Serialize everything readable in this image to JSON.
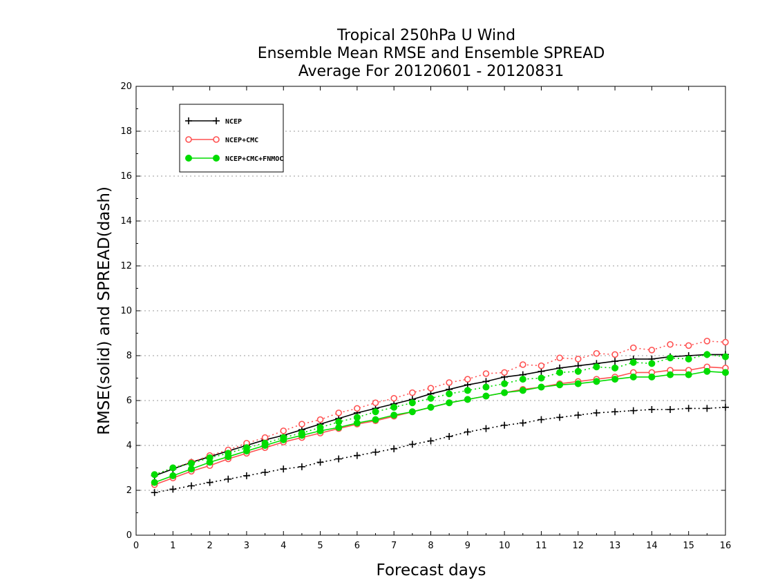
{
  "chart_data": {
    "type": "line",
    "title": [
      "Tropical 250hPa U Wind",
      "Ensemble Mean RMSE and Ensemble SPREAD",
      "Average For 20120601 - 20120831"
    ],
    "xlabel": "Forecast days",
    "ylabel": "RMSE(solid) and SPREAD(dash)",
    "xlim": [
      0,
      16
    ],
    "ylim": [
      0,
      20
    ],
    "xticks": [
      "0",
      "1",
      "2",
      "3",
      "4",
      "5",
      "6",
      "7",
      "8",
      "9",
      "10",
      "11",
      "12",
      "13",
      "14",
      "15",
      "16"
    ],
    "yticks": [
      "0",
      "2",
      "4",
      "6",
      "8",
      "10",
      "12",
      "14",
      "16",
      "18",
      "20"
    ],
    "grid": true,
    "legend_position": "top-left",
    "x": [
      0.5,
      1,
      1.5,
      2,
      2.5,
      3,
      3.5,
      4,
      4.5,
      5,
      5.5,
      6,
      6.5,
      7,
      7.5,
      8,
      8.5,
      9,
      9.5,
      10,
      10.5,
      11,
      11.5,
      12,
      12.5,
      13,
      13.5,
      14,
      14.5,
      15,
      15.5,
      16
    ],
    "series": [
      {
        "name": "NCEP",
        "kind": "rmse",
        "style": "solid",
        "marker": "plus",
        "color": "#000000",
        "values": [
          2.65,
          2.95,
          3.25,
          3.5,
          3.75,
          4.0,
          4.25,
          4.45,
          4.7,
          4.95,
          5.2,
          5.45,
          5.65,
          5.85,
          6.05,
          6.3,
          6.5,
          6.7,
          6.85,
          7.05,
          7.15,
          7.3,
          7.45,
          7.55,
          7.65,
          7.75,
          7.85,
          7.85,
          7.95,
          8.0,
          8.05,
          8.05
        ]
      },
      {
        "name": "NCEP+CMC",
        "kind": "rmse",
        "style": "solid",
        "marker": "open-circle",
        "color": "#ff5050",
        "values": [
          2.25,
          2.55,
          2.85,
          3.1,
          3.4,
          3.65,
          3.9,
          4.15,
          4.35,
          4.55,
          4.75,
          4.95,
          5.1,
          5.3,
          5.5,
          5.7,
          5.9,
          6.05,
          6.2,
          6.35,
          6.5,
          6.6,
          6.75,
          6.85,
          6.95,
          7.05,
          7.25,
          7.25,
          7.35,
          7.35,
          7.5,
          7.45
        ]
      },
      {
        "name": "NCEP+CMC+FNMOC",
        "kind": "rmse",
        "style": "solid",
        "marker": "filled-circle",
        "color": "#00dc00",
        "values": [
          2.35,
          2.65,
          2.95,
          3.25,
          3.5,
          3.75,
          4.0,
          4.25,
          4.45,
          4.65,
          4.8,
          5.0,
          5.15,
          5.35,
          5.5,
          5.7,
          5.9,
          6.05,
          6.2,
          6.35,
          6.45,
          6.6,
          6.7,
          6.75,
          6.85,
          6.95,
          7.05,
          7.05,
          7.15,
          7.15,
          7.3,
          7.25
        ]
      },
      {
        "name": "NCEP",
        "kind": "spread",
        "style": "dash",
        "marker": "plus",
        "color": "#000000",
        "values": [
          1.9,
          2.05,
          2.2,
          2.35,
          2.5,
          2.65,
          2.8,
          2.95,
          3.05,
          3.25,
          3.4,
          3.55,
          3.7,
          3.85,
          4.05,
          4.2,
          4.4,
          4.6,
          4.75,
          4.9,
          5.0,
          5.15,
          5.25,
          5.35,
          5.45,
          5.5,
          5.55,
          5.6,
          5.6,
          5.65,
          5.65,
          5.7
        ]
      },
      {
        "name": "NCEP+CMC",
        "kind": "spread",
        "style": "dash",
        "marker": "open-circle",
        "color": "#ff5050",
        "values": [
          2.7,
          3.0,
          3.25,
          3.55,
          3.8,
          4.1,
          4.35,
          4.65,
          4.95,
          5.15,
          5.45,
          5.65,
          5.9,
          6.1,
          6.35,
          6.55,
          6.8,
          6.95,
          7.2,
          7.25,
          7.6,
          7.55,
          7.9,
          7.85,
          8.1,
          8.05,
          8.35,
          8.25,
          8.5,
          8.45,
          8.65,
          8.6
        ]
      },
      {
        "name": "NCEP+CMC+FNMOC",
        "kind": "spread",
        "style": "dash",
        "marker": "filled-circle",
        "color": "#00dc00",
        "values": [
          2.7,
          3.0,
          3.2,
          3.45,
          3.65,
          3.9,
          4.1,
          4.35,
          4.55,
          4.8,
          5.05,
          5.25,
          5.5,
          5.7,
          5.9,
          6.1,
          6.3,
          6.45,
          6.6,
          6.75,
          6.95,
          7.0,
          7.25,
          7.3,
          7.5,
          7.45,
          7.7,
          7.65,
          7.9,
          7.85,
          8.05,
          7.95
        ]
      }
    ],
    "legend": [
      {
        "label": "NCEP",
        "marker": "plus",
        "color": "#000000"
      },
      {
        "label": "NCEP+CMC",
        "marker": "open-circle",
        "color": "#ff5050"
      },
      {
        "label": "NCEP+CMC+FNMOC",
        "marker": "filled-circle",
        "color": "#00dc00"
      }
    ]
  }
}
